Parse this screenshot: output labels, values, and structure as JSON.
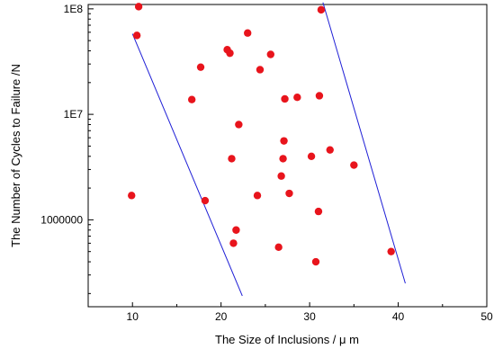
{
  "chart_data": {
    "type": "scatter",
    "title": "",
    "xlabel": "The Size of Inclusions / μ m",
    "ylabel": "The Number of Cycles to Failure /N",
    "x_scale": "linear",
    "y_scale": "log",
    "xlim": [
      5,
      50
    ],
    "ylim": [
      150000,
      110000000
    ],
    "x_ticks": [
      10,
      20,
      30,
      40,
      50
    ],
    "x_tick_labels": [
      "10",
      "20",
      "30",
      "40",
      "50"
    ],
    "y_ticks": [
      1000000,
      10000000,
      100000000
    ],
    "y_tick_labels": [
      "1000000",
      "1E7",
      "1E8"
    ],
    "grid": false,
    "legend": "none",
    "marker_color": "#e8141c",
    "line_color": "#1f1fd6",
    "points": [
      {
        "x": 10.7,
        "y": 105000000
      },
      {
        "x": 10.5,
        "y": 56000000
      },
      {
        "x": 9.9,
        "y": 1700000
      },
      {
        "x": 16.7,
        "y": 13800000
      },
      {
        "x": 17.7,
        "y": 28000000
      },
      {
        "x": 18.2,
        "y": 1520000
      },
      {
        "x": 20.7,
        "y": 41000000
      },
      {
        "x": 21.0,
        "y": 38000000
      },
      {
        "x": 21.2,
        "y": 3800000
      },
      {
        "x": 21.4,
        "y": 600000
      },
      {
        "x": 21.7,
        "y": 800000
      },
      {
        "x": 22.0,
        "y": 8000000
      },
      {
        "x": 23.0,
        "y": 59000000
      },
      {
        "x": 24.1,
        "y": 1700000
      },
      {
        "x": 24.4,
        "y": 26500000
      },
      {
        "x": 25.6,
        "y": 37000000
      },
      {
        "x": 26.5,
        "y": 550000
      },
      {
        "x": 26.8,
        "y": 2600000
      },
      {
        "x": 27.0,
        "y": 3800000
      },
      {
        "x": 27.1,
        "y": 5600000
      },
      {
        "x": 27.2,
        "y": 14000000
      },
      {
        "x": 27.7,
        "y": 1780000
      },
      {
        "x": 28.6,
        "y": 14500000
      },
      {
        "x": 30.2,
        "y": 4000000
      },
      {
        "x": 30.7,
        "y": 400000
      },
      {
        "x": 31.0,
        "y": 1200000
      },
      {
        "x": 31.1,
        "y": 15000000
      },
      {
        "x": 31.3,
        "y": 98000000
      },
      {
        "x": 32.3,
        "y": 4600000
      },
      {
        "x": 35.0,
        "y": 3300000
      },
      {
        "x": 39.2,
        "y": 500000
      }
    ],
    "bound_lines": [
      {
        "x": [
          10.0,
          22.4
        ],
        "y": [
          58000000,
          190000
        ]
      },
      {
        "x": [
          31.5,
          40.8
        ],
        "y": [
          115000000,
          250000
        ]
      }
    ]
  }
}
